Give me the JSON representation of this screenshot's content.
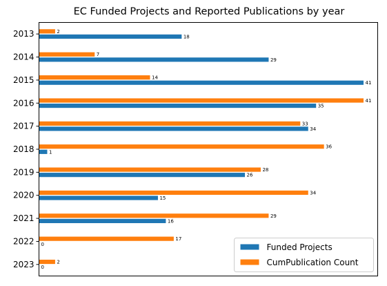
{
  "chart_data": {
    "type": "bar",
    "orientation": "horizontal",
    "title": "EC Funded Projects and Reported Publications by year",
    "categories": [
      "2013",
      "2014",
      "2015",
      "2016",
      "2017",
      "2018",
      "2019",
      "2020",
      "2021",
      "2022",
      "2023"
    ],
    "series": [
      {
        "name": "Funded Projects",
        "color": "#1f77b4",
        "values": [
          18,
          29,
          41,
          35,
          34,
          1,
          26,
          15,
          16,
          0,
          0
        ]
      },
      {
        "name": "CumPublication Count",
        "color": "#ff7f0e",
        "values": [
          2,
          7,
          14,
          41,
          33,
          36,
          28,
          34,
          29,
          17,
          2
        ]
      }
    ],
    "xlim": [
      0,
      41
    ],
    "x_axis_ticks": "hidden",
    "grid": false,
    "legend_position": "lower-right",
    "data_labels": true
  }
}
